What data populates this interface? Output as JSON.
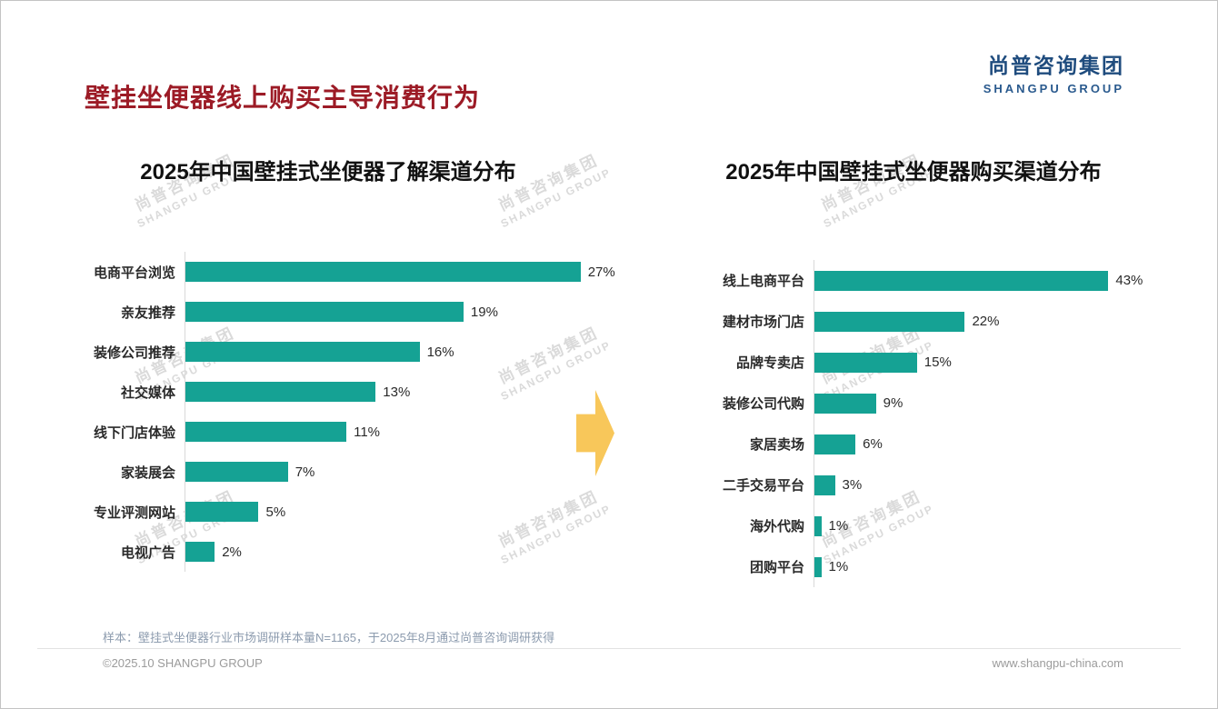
{
  "page": {
    "title": "壁挂坐便器线上购买主导消费行为",
    "logo": {
      "cn": "尚普咨询集团",
      "en": "SHANGPU GROUP"
    },
    "watermark": {
      "cn": "尚普咨询集团",
      "en": "SHANGPU GROUP"
    },
    "footnote": "样本：壁挂式坐便器行业市场调研样本量N=1165，于2025年8月通过尚普咨询调研获得",
    "footer_left": "©2025.10 SHANGPU GROUP",
    "footer_right": "www.shangpu-china.com"
  },
  "colors": {
    "bar": "#15a294",
    "arrow": "#f8c75a",
    "title": "#9c1b26",
    "logo": "#1f4c7e"
  },
  "chart_data": [
    {
      "type": "bar",
      "orientation": "horizontal",
      "title": "2025年中国壁挂式坐便器了解渠道分布",
      "categories": [
        "电商平台浏览",
        "亲友推荐",
        "装修公司推荐",
        "社交媒体",
        "线下门店体验",
        "家装展会",
        "专业评测网站",
        "电视广告"
      ],
      "values": [
        27,
        19,
        16,
        13,
        11,
        7,
        5,
        2
      ],
      "unit": "%",
      "xlim": [
        0,
        30
      ],
      "grid": false,
      "legend": false
    },
    {
      "type": "bar",
      "orientation": "horizontal",
      "title": "2025年中国壁挂式坐便器购买渠道分布",
      "categories": [
        "线上电商平台",
        "建材市场门店",
        "品牌专卖店",
        "装修公司代购",
        "家居卖场",
        "二手交易平台",
        "海外代购",
        "团购平台"
      ],
      "values": [
        43,
        22,
        15,
        9,
        6,
        3,
        1,
        1
      ],
      "unit": "%",
      "xlim": [
        0,
        50
      ],
      "grid": false,
      "legend": false
    }
  ]
}
